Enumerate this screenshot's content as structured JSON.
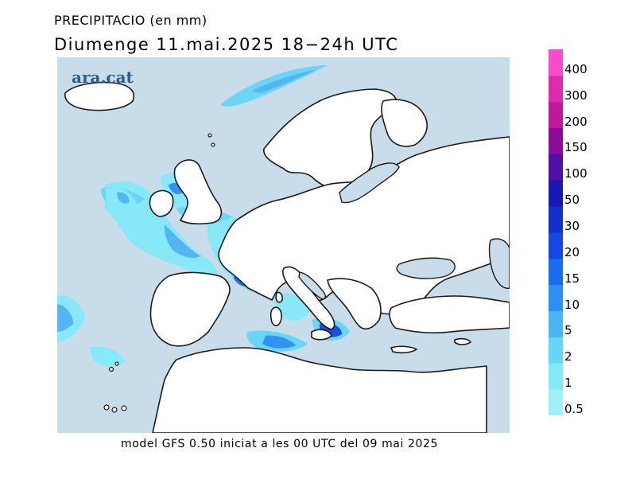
{
  "title": "PRECIPITACIO (en mm)",
  "subtitle": "Diumenge  11.mai.2025  18−24h  UTC",
  "footer": "model  GFS  0.50  iniciat  a  les  00  UTC  del  09  mai  2025",
  "logo_text": "ara.cat",
  "colors": {
    "sea": "#c8dcea",
    "land": "#ffffff",
    "coast": "#1a1a1a"
  },
  "legend": [
    {
      "label": "0.5",
      "color": "#9cf2f8"
    },
    {
      "label": "1",
      "color": "#84eaf8"
    },
    {
      "label": "2",
      "color": "#64d6f8"
    },
    {
      "label": "5",
      "color": "#4cb4f4"
    },
    {
      "label": "10",
      "color": "#2c90f4"
    },
    {
      "label": "15",
      "color": "#1c6cf0"
    },
    {
      "label": "20",
      "color": "#1448e4"
    },
    {
      "label": "30",
      "color": "#1030cc"
    },
    {
      "label": "50",
      "color": "#1818b4"
    },
    {
      "label": "100",
      "color": "#5010a8"
    },
    {
      "label": "150",
      "color": "#8c0c98"
    },
    {
      "label": "200",
      "color": "#c0189c"
    },
    {
      "label": "300",
      "color": "#e02ab0"
    },
    {
      "label": "400",
      "color": "#f84cc8"
    }
  ]
}
